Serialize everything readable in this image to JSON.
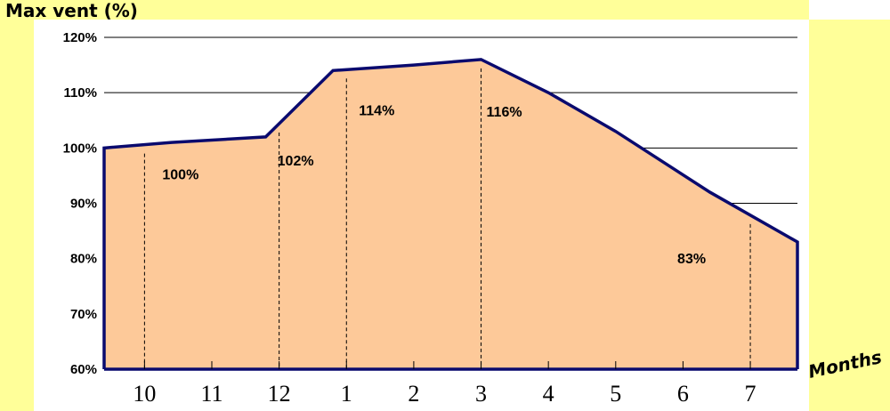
{
  "chart_data": {
    "type": "area",
    "title": "Max vent (%)",
    "xlabel": "Months",
    "ylabel": "",
    "ylim": [
      60,
      120
    ],
    "y_ticks": [
      "60%",
      "70%",
      "80%",
      "90%",
      "100%",
      "110%",
      "120%"
    ],
    "y_tick_values": [
      60,
      70,
      80,
      90,
      100,
      110,
      120
    ],
    "grid": true,
    "x_tick_labels": [
      "10",
      "11",
      "12",
      "1",
      "2",
      "3",
      "4",
      "5",
      "6",
      "7"
    ],
    "x_tick_positions": [
      10,
      11,
      12,
      13,
      14,
      15,
      16,
      17,
      18,
      19
    ],
    "xlim": [
      9.4,
      19.7
    ],
    "series": [
      {
        "x": [
          9.4,
          10.4,
          11.8,
          12.8,
          14.0,
          15.0,
          16.0,
          17.0,
          18.4,
          19.7
        ],
        "values": [
          100,
          101,
          102,
          114,
          115,
          116,
          110,
          103,
          92,
          83
        ]
      }
    ],
    "annotations": [
      {
        "x": 10,
        "y": 100,
        "label": "100%",
        "drop_line": true
      },
      {
        "x": 12,
        "y": 102,
        "label": "102%",
        "drop_line": true
      },
      {
        "x": 13,
        "y": 114,
        "label": "114%",
        "drop_line": true
      },
      {
        "x": 15,
        "y": 116,
        "label": "116%",
        "drop_line": true
      },
      {
        "x": 19,
        "y": 83,
        "label": "83%",
        "drop_line": true
      }
    ],
    "colors": {
      "fill": "#fdc999",
      "line": "#0a0a6e",
      "background_accent": "#ffff99"
    }
  }
}
